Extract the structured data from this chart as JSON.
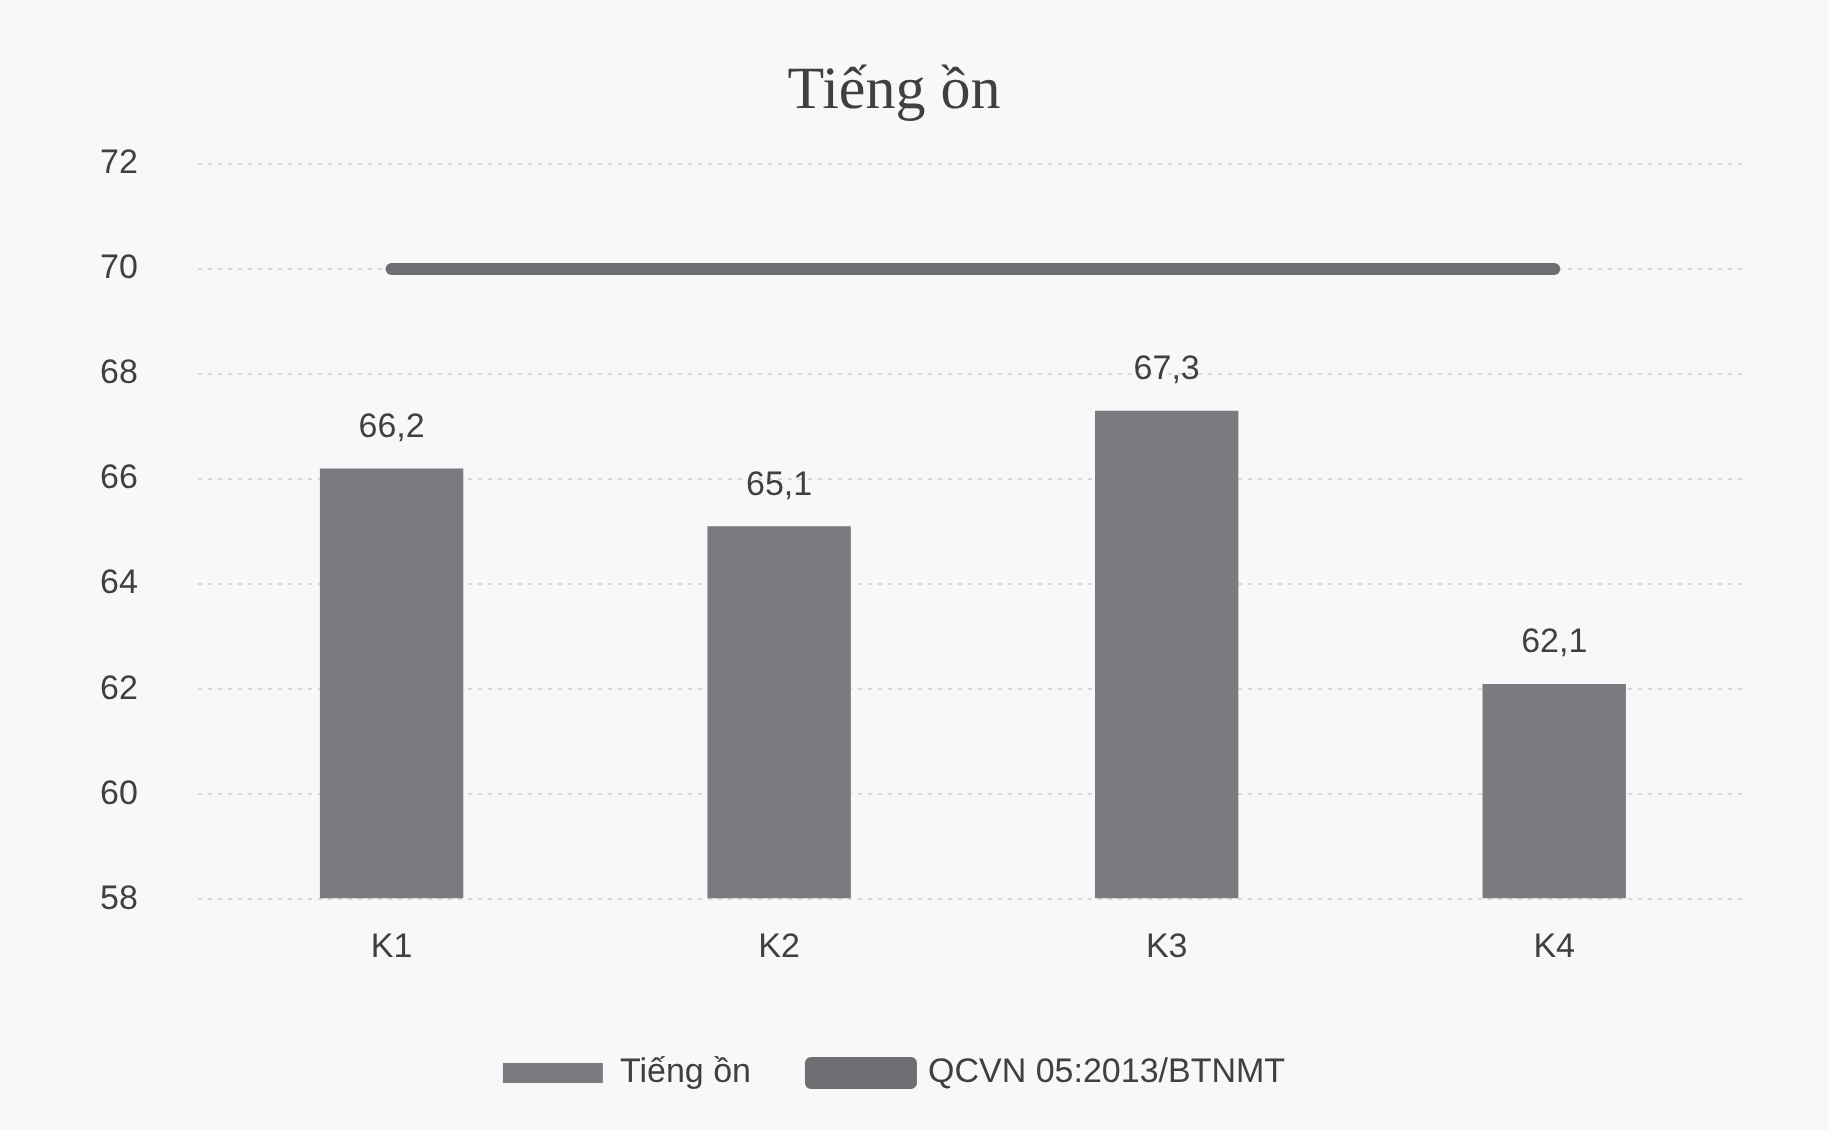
{
  "chart_data": {
    "type": "bar",
    "title": "Tiếng ồn",
    "categories": [
      "K1",
      "K2",
      "K3",
      "K4"
    ],
    "series": [
      {
        "name": "Tiếng ồn",
        "color": "#7a7a80",
        "values": [
          66.2,
          65.1,
          67.3,
          62.1
        ],
        "value_labels": [
          "66,2",
          "65,1",
          "67,3",
          "62,1"
        ]
      },
      {
        "name": "QCVN 05:2013/BTNMT",
        "type": "line",
        "color": "#6e6e72",
        "values": [
          70,
          70,
          70,
          70
        ]
      }
    ],
    "ylim": [
      58,
      72
    ],
    "yticks": [
      58,
      60,
      62,
      64,
      66,
      68,
      70,
      72
    ],
    "grid": "y",
    "legend": "bottom",
    "marker": "none"
  }
}
